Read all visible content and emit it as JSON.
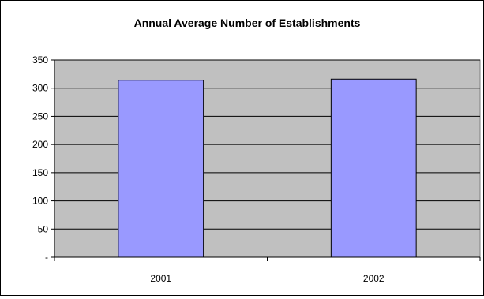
{
  "chart_data": {
    "type": "bar",
    "title": "Annual Average Number of Establishments",
    "xlabel": "",
    "ylabel": "",
    "categories": [
      "2001",
      "2002"
    ],
    "values": [
      314,
      316
    ],
    "ylim": [
      0,
      350
    ],
    "yticks": [
      0,
      50,
      100,
      150,
      200,
      250,
      300,
      350
    ],
    "ytick_labels": [
      "-",
      "50",
      "100",
      "150",
      "200",
      "250",
      "300",
      "350"
    ],
    "grid": true,
    "legend": "none",
    "colors": {
      "plot_background": "#c0c0c0",
      "bar_fill": "#9999ff",
      "bar_stroke": "#000000",
      "gridline": "#000000"
    }
  }
}
